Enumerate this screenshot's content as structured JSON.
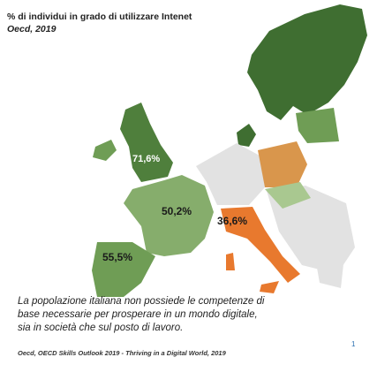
{
  "header": {
    "title": "% di individui in grado di utilizzare Intenet",
    "subtitle": "Oecd, 2019"
  },
  "map_labels": [
    "71,6%",
    "50,2%",
    "55,5%",
    "36,6%"
  ],
  "body_text": [
    "La popolazione italiana non possiede le competenze di",
    "base necessarie per prosperare in un mondo digitale,",
    "sia in società che sul posto di lavoro."
  ],
  "footnote": "Oecd, OECD Skills Outlook 2019 - Thriving in a Digital World, 2019",
  "page_number": "1"
}
